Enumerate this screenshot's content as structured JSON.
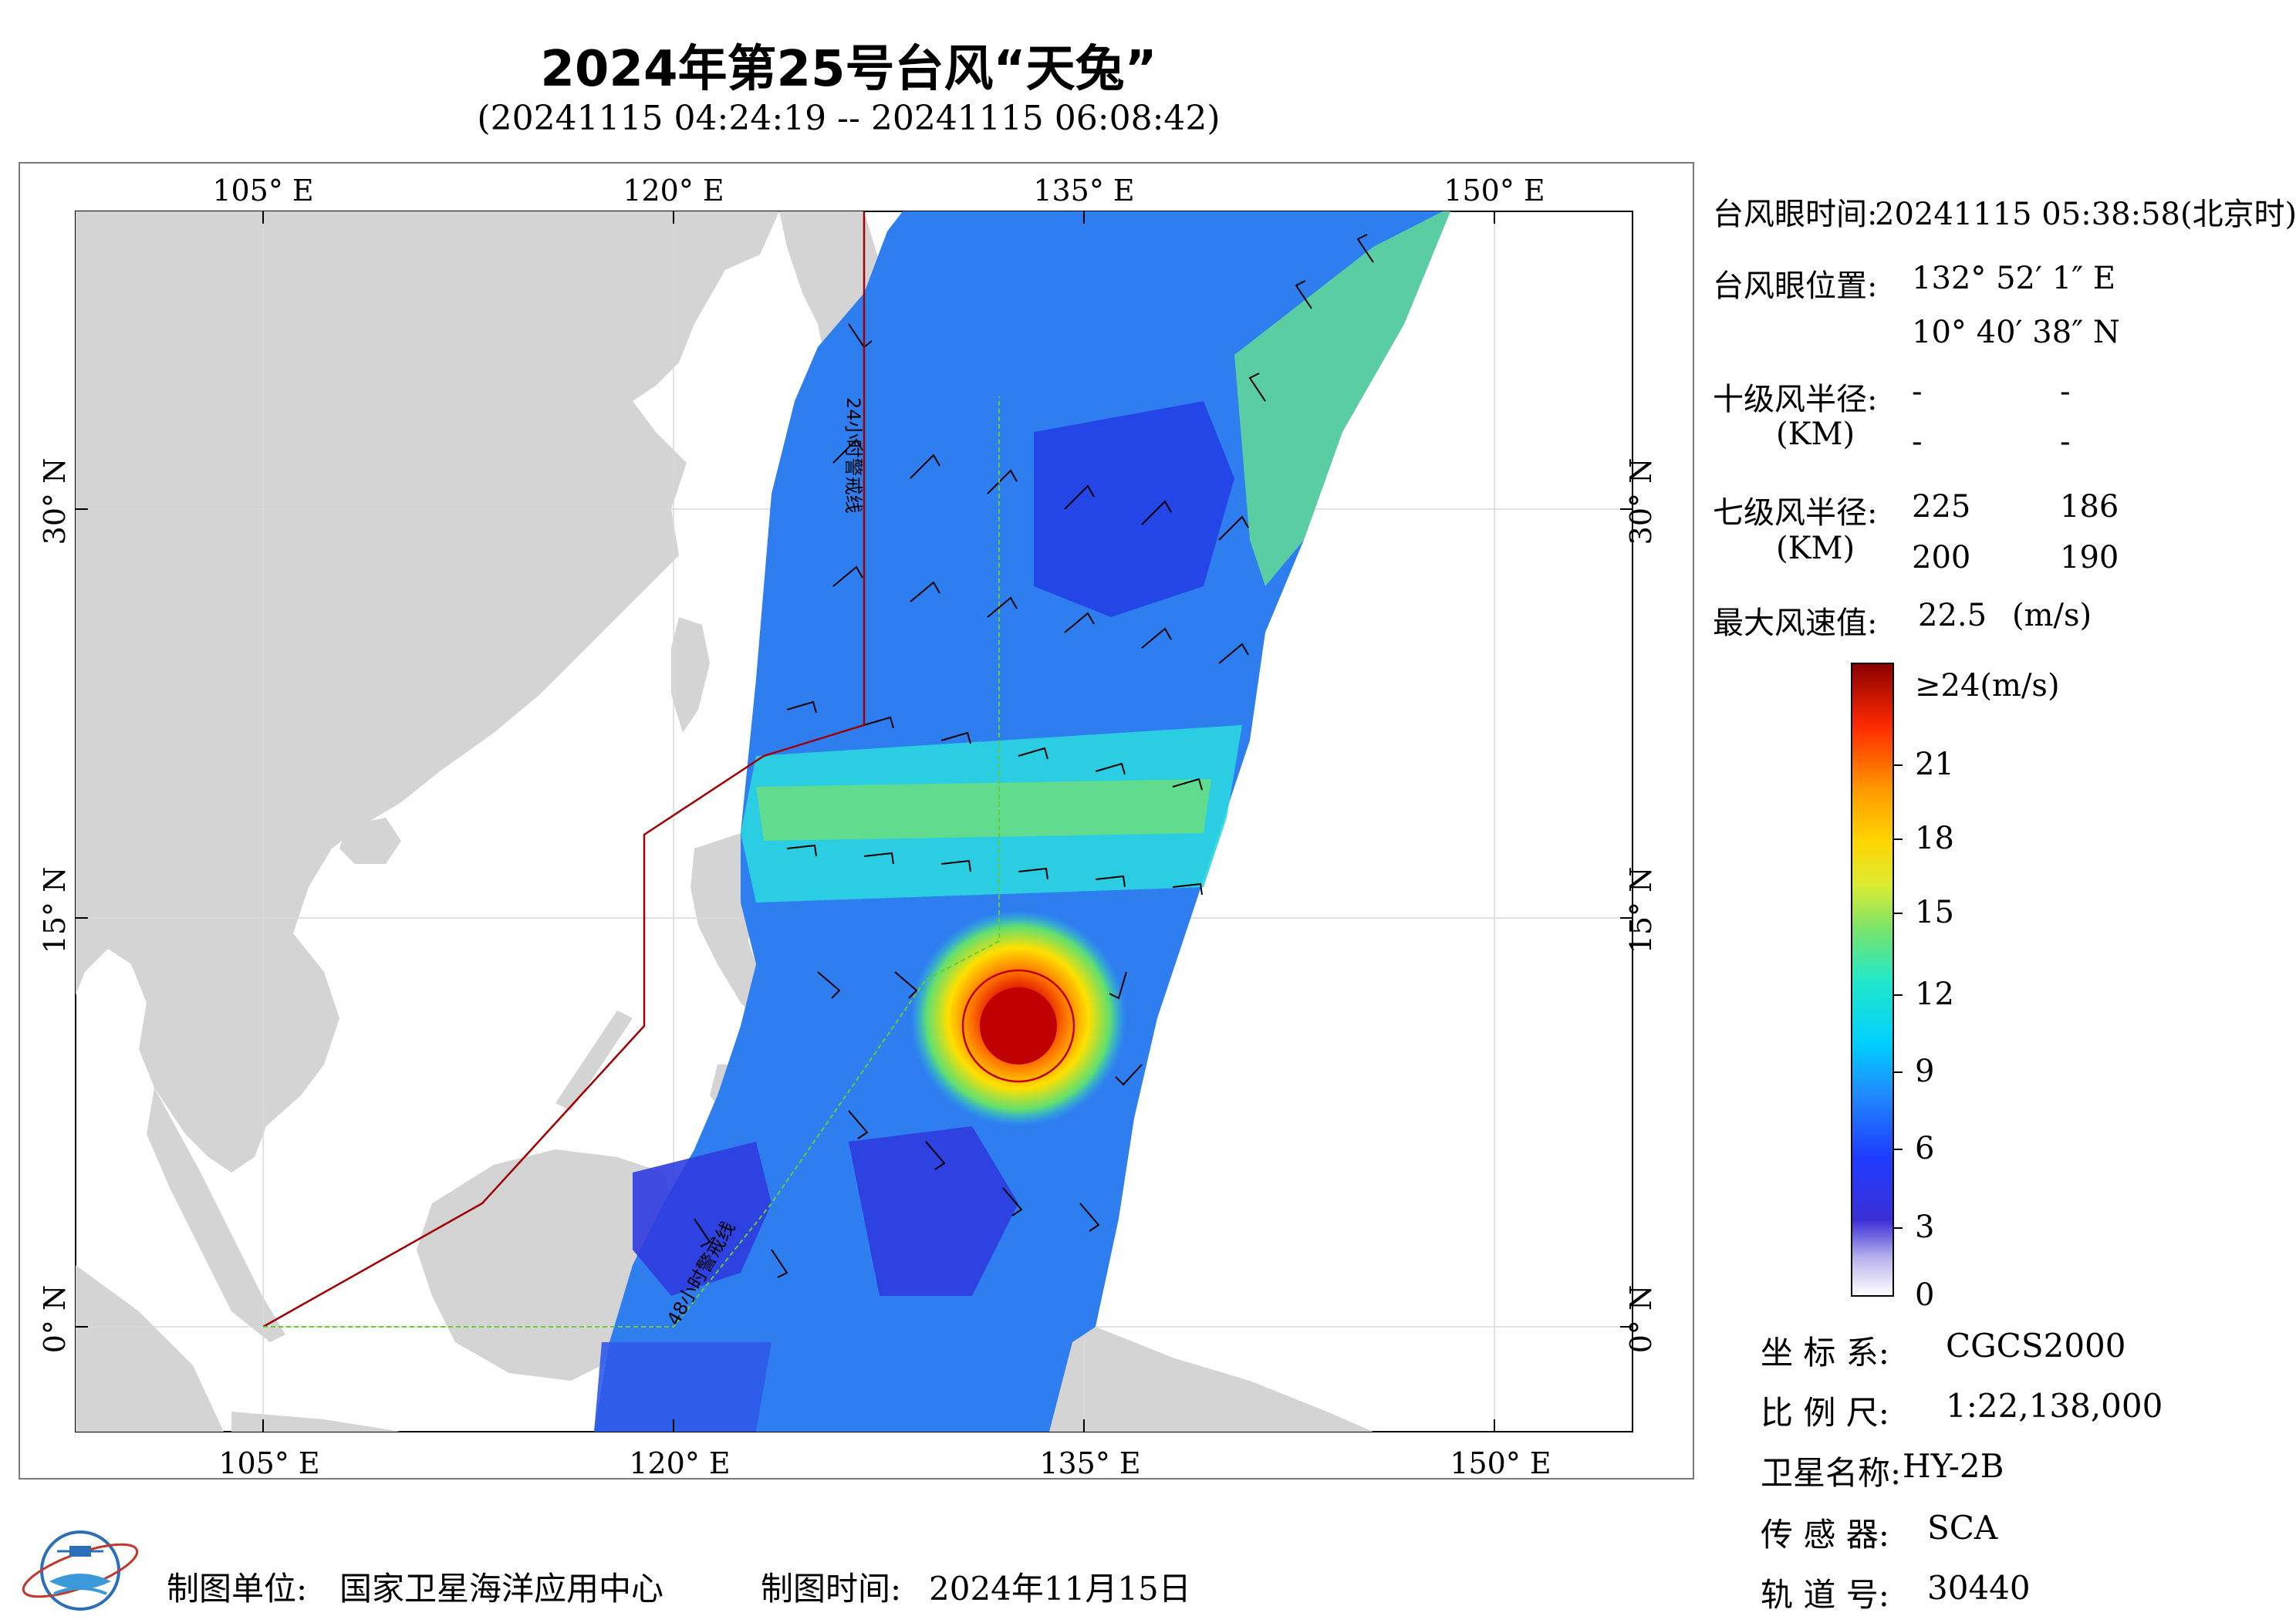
{
  "header": {
    "title": "2024年第25号台风“天兔”",
    "subtitle": "(20241115 04:24:19 -- 20241115 06:08:42)"
  },
  "map": {
    "lon_ticks": [
      "105° E",
      "120° E",
      "135° E",
      "150° E"
    ],
    "lat_ticks": [
      "30° N",
      "15° N",
      "0° N"
    ],
    "line_label_24h": "24小时警戒线",
    "line_label_48h": "48小时警戒线",
    "colors": {
      "land": "#d4d4d4",
      "sea": "#ffffff",
      "line_24h": "#a00000",
      "line_48h": "#66cc33"
    }
  },
  "info": {
    "eye_time_label": "台风眼时间:",
    "eye_time_value": "20241115 05:38:58(北京时)",
    "eye_pos_label": "台风眼位置:",
    "eye_lon": "132° 52′ 1″ E",
    "eye_lat": "10° 40′ 38″ N",
    "r10_label": "十级风半径:",
    "r10_unit": "(KM)",
    "r10_values": [
      "-",
      "-",
      "-",
      "-"
    ],
    "r7_label": "七级风半径:",
    "r7_unit": "(KM)",
    "r7_values": [
      "225",
      "186",
      "200",
      "190"
    ],
    "max_wind_label": "最大风速值:",
    "max_wind_value": "22.5",
    "max_wind_unit": "(m/s)"
  },
  "colorbar": {
    "labels": [
      "≥24(m/s)",
      "21",
      "18",
      "15",
      "12",
      "9",
      "6",
      "3",
      "0"
    ]
  },
  "meta": {
    "crs_label": "坐 标 系:",
    "crs_value": "CGCS2000",
    "scale_label": "比 例 尺:",
    "scale_value": "1:22,138,000",
    "satellite_label": "卫星名称:",
    "satellite_value": "HY-2B",
    "sensor_label": "传 感 器:",
    "sensor_value": "SCA",
    "orbit_label": "轨 道 号:",
    "orbit_value": "30440"
  },
  "footer": {
    "maker_label": "制图单位:",
    "maker_value": "国家卫星海洋应用中心",
    "date_label": "制图时间:",
    "date_value": "2024年11月15日"
  }
}
